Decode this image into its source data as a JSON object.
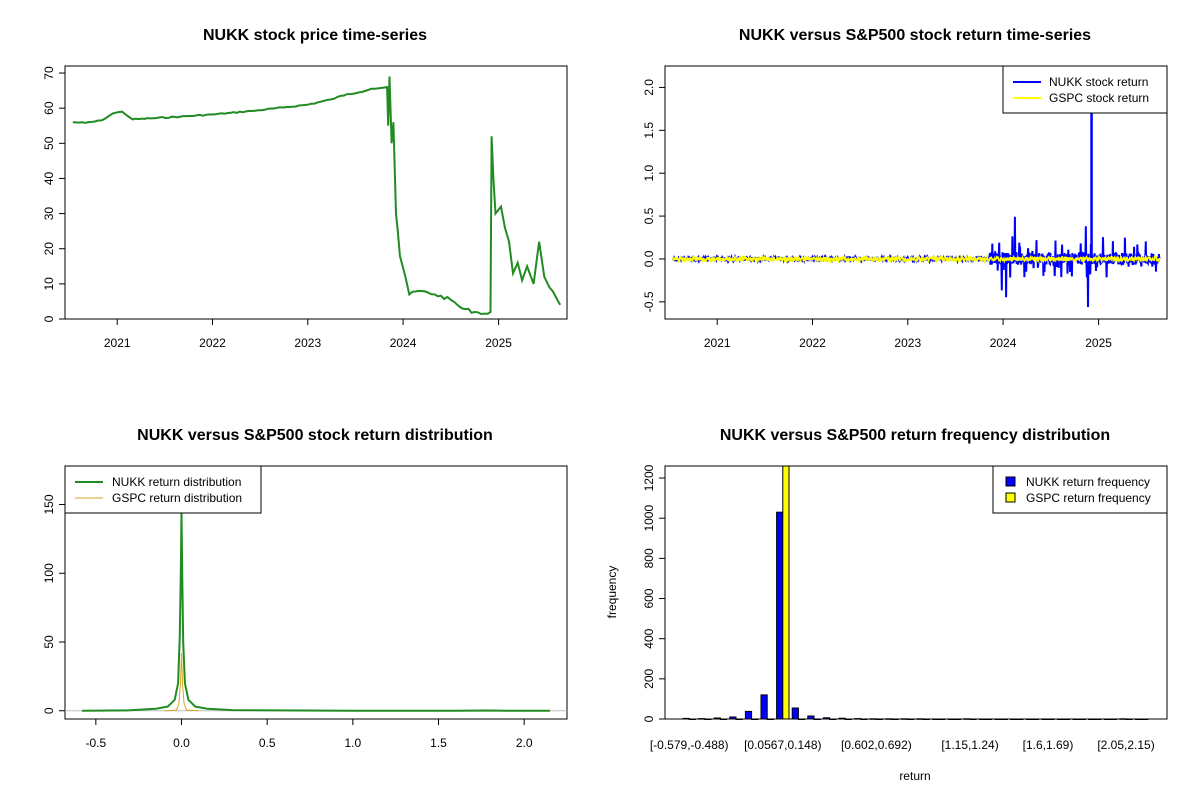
{
  "chart_data": [
    {
      "type": "line",
      "title": "NUKK stock price time-series",
      "xlabel": "",
      "ylabel": "",
      "x_ticks": [
        "2021",
        "2022",
        "2023",
        "2024",
        "2025"
      ],
      "y_ticks": [
        "0",
        "10",
        "20",
        "30",
        "40",
        "50",
        "60",
        "70"
      ],
      "xlim": [
        "2020-06-15",
        "2025-09-20"
      ],
      "ylim": [
        0,
        72
      ],
      "grid": false,
      "series": [
        {
          "color": "#228b22",
          "points": [
            [
              "2020-07-15",
              56
            ],
            [
              "2020-09-01",
              55.8
            ],
            [
              "2020-11-01",
              56.5
            ],
            [
              "2020-12-15",
              58.5
            ],
            [
              "2021-01-20",
              59
            ],
            [
              "2021-03-01",
              56.8
            ],
            [
              "2021-06-01",
              57.2
            ],
            [
              "2021-09-01",
              57.6
            ],
            [
              "2022-01-01",
              58.2
            ],
            [
              "2022-06-01",
              59.2
            ],
            [
              "2022-10-01",
              60.2
            ],
            [
              "2023-01-01",
              61
            ],
            [
              "2023-04-01",
              62.5
            ],
            [
              "2023-06-01",
              64
            ],
            [
              "2023-07-15",
              64.5
            ],
            [
              "2023-09-01",
              65.5
            ],
            [
              "2023-10-15",
              65.8
            ],
            [
              "2023-11-01",
              66
            ],
            [
              "2023-11-05",
              55
            ],
            [
              "2023-11-10",
              69
            ],
            [
              "2023-11-18",
              50
            ],
            [
              "2023-11-25",
              56
            ],
            [
              "2023-12-05",
              30
            ],
            [
              "2023-12-12",
              25
            ],
            [
              "2023-12-20",
              18
            ],
            [
              "2024-01-10",
              12
            ],
            [
              "2024-01-25",
              7
            ],
            [
              "2024-03-01",
              8
            ],
            [
              "2024-05-01",
              7
            ],
            [
              "2024-07-01",
              5.5
            ],
            [
              "2024-08-15",
              3
            ],
            [
              "2024-10-01",
              2
            ],
            [
              "2024-11-20",
              1.5
            ],
            [
              "2024-12-01",
              2
            ],
            [
              "2024-12-05",
              52
            ],
            [
              "2024-12-12",
              40
            ],
            [
              "2024-12-20",
              30
            ],
            [
              "2025-01-10",
              32
            ],
            [
              "2025-01-25",
              26
            ],
            [
              "2025-02-10",
              22
            ],
            [
              "2025-02-25",
              13
            ],
            [
              "2025-03-15",
              16
            ],
            [
              "2025-04-01",
              11
            ],
            [
              "2025-04-20",
              15
            ],
            [
              "2025-05-15",
              10
            ],
            [
              "2025-06-05",
              22
            ],
            [
              "2025-06-25",
              12
            ],
            [
              "2025-07-15",
              9
            ],
            [
              "2025-08-10",
              6
            ],
            [
              "2025-08-25",
              4
            ]
          ]
        }
      ]
    },
    {
      "type": "line",
      "title": "NUKK versus S&P500 stock return time-series",
      "xlabel": "",
      "ylabel": "",
      "x_ticks": [
        "2021",
        "2022",
        "2023",
        "2024",
        "2025"
      ],
      "y_ticks": [
        "-0.5",
        "0.0",
        "0.5",
        "1.0",
        "1.5",
        "2.0"
      ],
      "xlim": [
        "2020-06-15",
        "2025-09-20"
      ],
      "ylim": [
        -0.7,
        2.25
      ],
      "grid": false,
      "legend_position": "top-right",
      "series": [
        {
          "name": "NUKK stock return",
          "color": "#0000ff"
        },
        {
          "name": "GSPC stock return",
          "color": "#ffff00"
        }
      ]
    },
    {
      "type": "line",
      "title": "NUKK versus S&P500 stock return distribution",
      "xlabel": "",
      "ylabel": "",
      "x_ticks": [
        "-0.5",
        "0.0",
        "0.5",
        "1.0",
        "1.5",
        "2.0"
      ],
      "y_ticks": [
        "0",
        "50",
        "100",
        "150"
      ],
      "xlim": [
        -0.68,
        2.25
      ],
      "ylim": [
        -6,
        178
      ],
      "grid": false,
      "legend_position": "top-left",
      "series": [
        {
          "name": "NUKK return distribution",
          "color": "#228b22",
          "points": [
            [
              -0.58,
              0
            ],
            [
              -0.3,
              0.3
            ],
            [
              -0.15,
              1.5
            ],
            [
              -0.08,
              3
            ],
            [
              -0.04,
              8
            ],
            [
              -0.02,
              20
            ],
            [
              -0.01,
              55
            ],
            [
              -0.004,
              100
            ],
            [
              0,
              145
            ],
            [
              0.004,
              100
            ],
            [
              0.01,
              50
            ],
            [
              0.02,
              20
            ],
            [
              0.04,
              8
            ],
            [
              0.08,
              3
            ],
            [
              0.15,
              1.5
            ],
            [
              0.3,
              0.5
            ],
            [
              1.0,
              0
            ],
            [
              1.6,
              0
            ],
            [
              1.78,
              0.2
            ],
            [
              1.9,
              0
            ],
            [
              2.15,
              0
            ]
          ]
        },
        {
          "name": "GSPC return distribution",
          "color": "#daa520",
          "points": [
            [
              -0.1,
              0
            ],
            [
              -0.03,
              0.5
            ],
            [
              -0.015,
              5
            ],
            [
              -0.006,
              20
            ],
            [
              0,
              42
            ],
            [
              0.006,
              20
            ],
            [
              0.015,
              5
            ],
            [
              0.03,
              0.5
            ],
            [
              0.1,
              0
            ]
          ]
        }
      ]
    },
    {
      "type": "bar",
      "title": "NUKK versus S&P500 return frequency distribution",
      "xlabel": "return",
      "ylabel": "frequency",
      "y_ticks": [
        "0",
        "200",
        "400",
        "600",
        "800",
        "1000",
        "1200"
      ],
      "ylim": [
        0,
        1260
      ],
      "grid": false,
      "legend_position": "top-right",
      "category_labels": [
        {
          "index": 0,
          "label": "[-0.579,-0.488)"
        },
        {
          "index": 6,
          "label": "[0.0567,0.148)"
        },
        {
          "index": 12,
          "label": "[0.602,0.692)"
        },
        {
          "index": 18,
          "label": "[1.15,1.24)"
        },
        {
          "index": 23,
          "label": "[1.6,1.69)"
        },
        {
          "index": 28,
          "label": "[2.05,2.15)"
        }
      ],
      "series": [
        {
          "name": "NUKK return frequency",
          "color": "#0000ff",
          "values": [
            3,
            2,
            5,
            10,
            38,
            120,
            1030,
            55,
            15,
            6,
            4,
            2,
            1,
            1,
            1,
            1,
            0,
            0,
            1,
            0,
            0,
            0,
            0,
            0,
            0,
            0,
            0,
            0,
            1,
            0
          ]
        },
        {
          "name": "GSPC return frequency",
          "color": "#ffff00",
          "values": [
            0,
            0,
            0,
            0,
            0,
            0,
            1300,
            0,
            0,
            0,
            0,
            0,
            0,
            0,
            0,
            0,
            0,
            0,
            0,
            0,
            0,
            0,
            0,
            0,
            0,
            0,
            0,
            0,
            0,
            0
          ]
        }
      ]
    }
  ]
}
